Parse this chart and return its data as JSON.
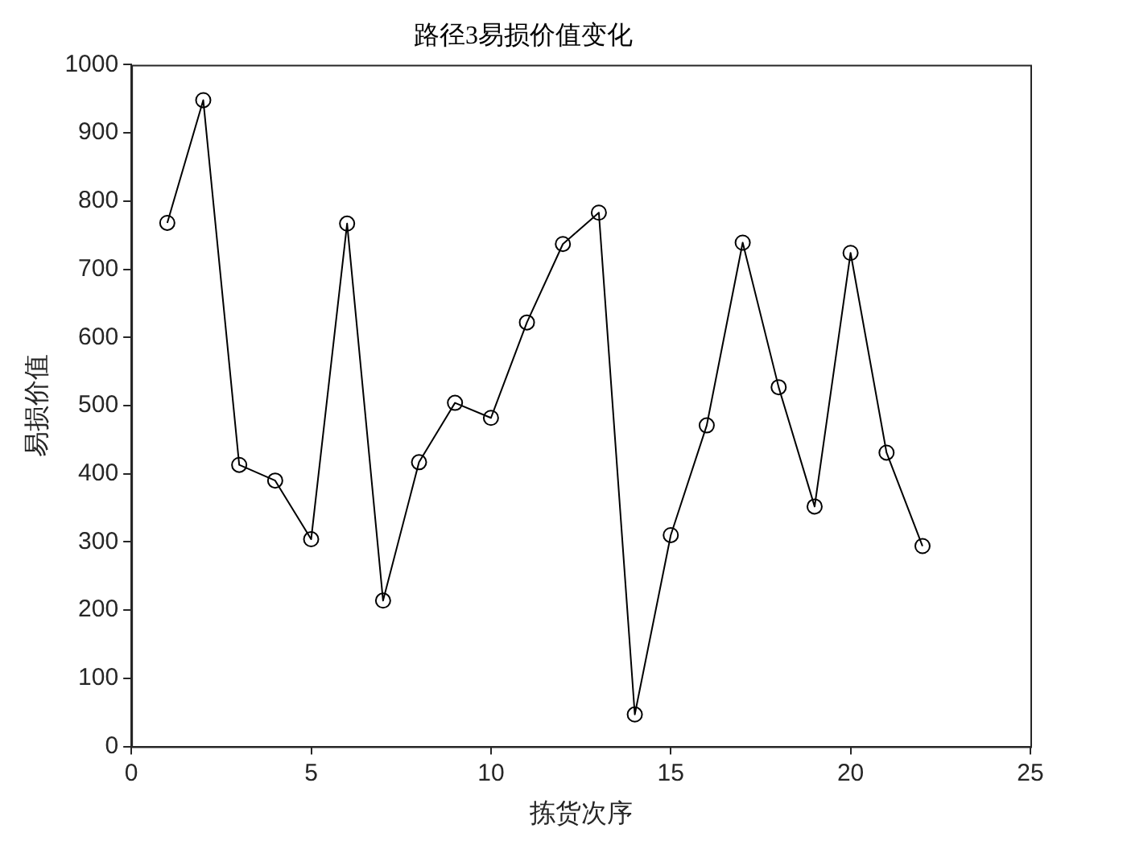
{
  "chart_data": {
    "type": "line",
    "title": "路径3易损价值变化",
    "xlabel": "拣货次序",
    "ylabel": "易损价值",
    "x": [
      1,
      2,
      3,
      4,
      5,
      6,
      7,
      8,
      9,
      10,
      11,
      12,
      13,
      14,
      15,
      16,
      17,
      18,
      19,
      20,
      21,
      22
    ],
    "series": [
      {
        "color": "#000000",
        "values": [
          768,
          948,
          413,
          390,
          304,
          767,
          214,
          417,
          504,
          482,
          622,
          737,
          783,
          47,
          310,
          471,
          739,
          527,
          352,
          724,
          431,
          294
        ]
      }
    ],
    "xlim": [
      0,
      25
    ],
    "xticks": [
      0,
      5,
      10,
      15,
      20,
      25
    ],
    "ylim": [
      0,
      1000
    ],
    "yticks": [
      0,
      100,
      200,
      300,
      400,
      500,
      600,
      700,
      800,
      900,
      1000
    ],
    "grid": false,
    "legend": false,
    "marker": "circle",
    "line_style": "solid"
  }
}
